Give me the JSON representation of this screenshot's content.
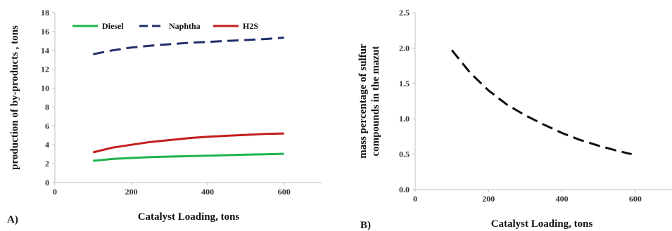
{
  "chart_data": [
    {
      "type": "line",
      "panel_label": "A)",
      "xlabel": "Catalyst Loading, tons",
      "ylabel": "production of by-products , tons",
      "xlim": [
        0,
        700
      ],
      "ylim": [
        0,
        18
      ],
      "x_ticks": [
        0,
        200,
        400,
        600
      ],
      "y_ticks": [
        0,
        2,
        4,
        6,
        8,
        10,
        12,
        14,
        16,
        18
      ],
      "grid": false,
      "legend_position": "top",
      "series": [
        {
          "name": "Diesel",
          "color": "#1db34c",
          "dash": "solid",
          "x": [
            100,
            150,
            200,
            250,
            300,
            350,
            400,
            450,
            500,
            550,
            600
          ],
          "y": [
            2.3,
            2.5,
            2.6,
            2.7,
            2.75,
            2.8,
            2.85,
            2.9,
            2.95,
            3.0,
            3.05
          ]
        },
        {
          "name": "Naphtha",
          "color": "#1f2f6b",
          "dash": "dashed",
          "x": [
            100,
            150,
            200,
            250,
            300,
            350,
            400,
            450,
            500,
            550,
            600
          ],
          "y": [
            13.6,
            14.0,
            14.3,
            14.5,
            14.65,
            14.8,
            14.9,
            15.0,
            15.1,
            15.2,
            15.35
          ]
        },
        {
          "name": "H2S",
          "color": "#c41e1e",
          "dash": "solid",
          "x": [
            100,
            150,
            200,
            250,
            300,
            350,
            400,
            450,
            500,
            550,
            600
          ],
          "y": [
            3.2,
            3.7,
            4.0,
            4.3,
            4.5,
            4.7,
            4.85,
            4.95,
            5.05,
            5.15,
            5.2
          ]
        }
      ]
    },
    {
      "type": "line",
      "panel_label": "B)",
      "xlabel": "Catalyst Loading, tons",
      "ylabel_lines": [
        "mass percentage of sulfur",
        "compounds in the mazut"
      ],
      "xlim": [
        0,
        700
      ],
      "ylim": [
        0,
        2.5
      ],
      "x_ticks": [
        0,
        200,
        400,
        600
      ],
      "y_ticks": [
        "0.0",
        "0.5",
        "1.0",
        "1.5",
        "2.0",
        "2.5"
      ],
      "grid": false,
      "series": [
        {
          "color": "#111111",
          "dash": "dashed",
          "x": [
            100,
            150,
            200,
            250,
            300,
            350,
            400,
            450,
            500,
            550,
            590
          ],
          "y": [
            1.97,
            1.65,
            1.4,
            1.2,
            1.05,
            0.92,
            0.8,
            0.7,
            0.62,
            0.55,
            0.5
          ]
        }
      ]
    }
  ]
}
